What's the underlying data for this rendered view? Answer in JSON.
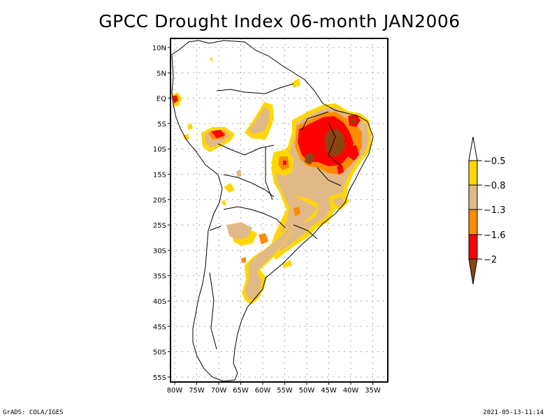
{
  "title": "GPCC Drought Index 06-month JAN2006",
  "map": {
    "region": "South America",
    "lon_range": [
      "80W",
      "32W"
    ],
    "lat_range": [
      "12N",
      "56S"
    ],
    "lat_ticks": [
      "10N",
      "5N",
      "EQ",
      "5S",
      "10S",
      "15S",
      "20S",
      "25S",
      "30S",
      "35S",
      "40S",
      "45S",
      "50S",
      "55S"
    ],
    "lon_ticks": [
      "80W",
      "75W",
      "70W",
      "65W",
      "60W",
      "55W",
      "50W",
      "45W",
      "40W",
      "35W"
    ],
    "grid": "dotted"
  },
  "colorbar": {
    "orientation": "vertical",
    "levels": [
      "-0.5",
      "-0.8",
      "-1.3",
      "-1.6",
      "-2"
    ],
    "colors": {
      "above": "#ffffff",
      "yellow": "#ffd700",
      "tan": "#e1b987",
      "orange": "#ff8c00",
      "red": "#ff0000",
      "brown": "#8b4513"
    }
  },
  "footer": {
    "left": "GrADS: COLA/IGES",
    "right": "2021-05-13-11:14"
  }
}
